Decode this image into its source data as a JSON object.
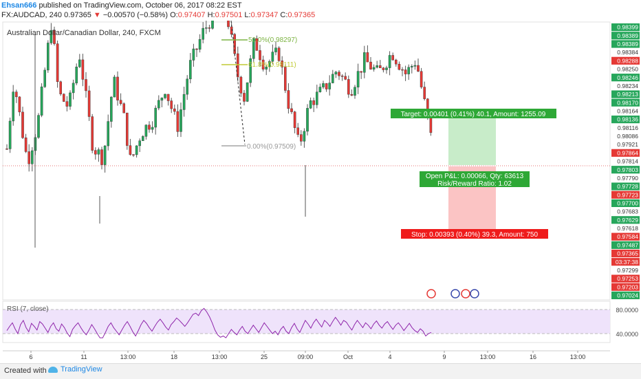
{
  "header": {
    "publisher": "Ehsan666",
    "published_text": "published on TradingView.com, October 06, 2017 08:22 EST",
    "symbol": "FX:AUDCAD, 240",
    "price": "0.97365",
    "change": "−0.00570 (−0.58%)",
    "o_label": "O:",
    "o_val": "0.97407",
    "h_label": "H:",
    "h_val": "0.97501",
    "l_label": "L:",
    "l_val": "0.97347",
    "c_label": "C:",
    "c_val": "0.97365"
  },
  "chart_title": "Australian Dollar/Canadian Dollar, 240, FXCM",
  "footer": {
    "created_with": "Created with",
    "brand": "TradingView"
  },
  "colors": {
    "up": "#26a65b",
    "down": "#e53935",
    "rsi": "#8e24aa",
    "rsi_band": "#efe3fb",
    "green_zone": "#c8ecc9",
    "red_zone": "#fbc4c4"
  },
  "chart_data": {
    "type": "candlestick",
    "title": "Australian Dollar/Canadian Dollar, 240, FXCM",
    "ylim": [
      0.97024,
      0.98399
    ],
    "x_tick_labels": [
      "6",
      "11",
      "13:00",
      "18",
      "13:00",
      "25",
      "09:00",
      "Oct",
      "4",
      "9",
      "13:00",
      "16",
      "13:00"
    ],
    "price_axis_labels": [
      {
        "v": "0.98399",
        "c": "g"
      },
      {
        "v": "0.98389",
        "c": "g"
      },
      {
        "v": "0.98389",
        "c": "g"
      },
      {
        "v": "0.98384",
        "c": "w"
      },
      {
        "v": "0.98288",
        "c": "r"
      },
      {
        "v": "0.98250",
        "c": "w"
      },
      {
        "v": "0.98246",
        "c": "g"
      },
      {
        "v": "0.98234",
        "c": "w"
      },
      {
        "v": "0.98213",
        "c": "g"
      },
      {
        "v": "0.98170",
        "c": "g"
      },
      {
        "v": "0.98164",
        "c": "w"
      },
      {
        "v": "0.98136",
        "c": "g"
      },
      {
        "v": "0.98116",
        "c": "w"
      },
      {
        "v": "0.98086",
        "c": "w"
      },
      {
        "v": "0.97921",
        "c": "w"
      },
      {
        "v": "0.97864",
        "c": "r"
      },
      {
        "v": "0.97814",
        "c": "w"
      },
      {
        "v": "0.97803",
        "c": "g"
      },
      {
        "v": "0.97790",
        "c": "w"
      },
      {
        "v": "0.97728",
        "c": "g"
      },
      {
        "v": "0.97723",
        "c": "r"
      },
      {
        "v": "0.97700",
        "c": "g"
      },
      {
        "v": "0.97683",
        "c": "w"
      },
      {
        "v": "0.97629",
        "c": "g"
      },
      {
        "v": "0.97618",
        "c": "w"
      },
      {
        "v": "0.97584",
        "c": "r"
      },
      {
        "v": "0.97487",
        "c": "g"
      },
      {
        "v": "0.97365",
        "c": "r"
      },
      {
        "v": "03:37:38",
        "c": "r"
      },
      {
        "v": "0.97299",
        "c": "w"
      },
      {
        "v": "0.97253",
        "c": "r"
      },
      {
        "v": "0.97203",
        "c": "r"
      },
      {
        "v": "0.97024",
        "c": "g"
      }
    ],
    "fib": [
      {
        "label": "50.0%(0.98297)"
      },
      {
        "label": "61.8%(0.98111)"
      },
      {
        "label": "0.00%(0.97509)"
      }
    ],
    "position": {
      "target": "Target: 0.00401 (0.41%) 40.1, Amount: 1255.09",
      "open_pnl": "Open P&L: 0.00066, Qty: 63613",
      "rr": "Risk/Reward Ratio: 1.02",
      "stop": "Stop: 0.00393 (0.40%) 39.3, Amount: 750"
    },
    "rsi": {
      "label": "RSI (7, close)",
      "levels": [
        "80.0000",
        "40.0000"
      ],
      "values": [
        45,
        52,
        58,
        48,
        40,
        55,
        62,
        50,
        43,
        57,
        52,
        46,
        60,
        56,
        49,
        42,
        52,
        58,
        48,
        44,
        56,
        50,
        41,
        35,
        47,
        53,
        58,
        50,
        43,
        38,
        46,
        55,
        48,
        40,
        33,
        33,
        42,
        52,
        58,
        50,
        44,
        38,
        46,
        54,
        60,
        52,
        43,
        36,
        45,
        55,
        62,
        57,
        50,
        44,
        52,
        59,
        64,
        58,
        51,
        46,
        55,
        60,
        66,
        62,
        57,
        52,
        58,
        65,
        72,
        74,
        70,
        78,
        82,
        76,
        68,
        58,
        46,
        38,
        34,
        36,
        33,
        40,
        47,
        42,
        38,
        46,
        52,
        44,
        40,
        47,
        54,
        48,
        42,
        50,
        58,
        52,
        46,
        40,
        44,
        38,
        47,
        52,
        44,
        40,
        50,
        57,
        48,
        42,
        52,
        62,
        56,
        49,
        58,
        64,
        57,
        51,
        62,
        58,
        52,
        60,
        67,
        61,
        54,
        62,
        59,
        52,
        46,
        55,
        62,
        56,
        50,
        58,
        54,
        48,
        56,
        61,
        54,
        49,
        56,
        60,
        53,
        47,
        54,
        58,
        52,
        45,
        51,
        57,
        50,
        45,
        42,
        48,
        44,
        36,
        40,
        42
      ]
    }
  }
}
